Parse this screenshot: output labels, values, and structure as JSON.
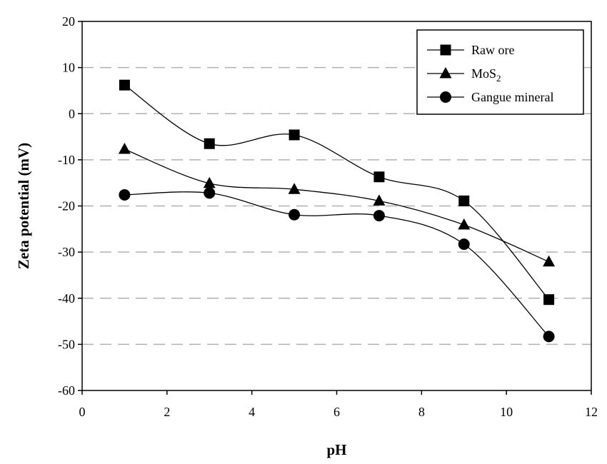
{
  "chart_data": {
    "type": "line",
    "title": "",
    "xlabel": "pH",
    "ylabel": "Zeta potential (mV)",
    "xlim": [
      0,
      12
    ],
    "ylim": [
      -60,
      20
    ],
    "xticks": [
      0,
      2,
      4,
      6,
      8,
      10,
      12
    ],
    "yticks": [
      -60,
      -50,
      -40,
      -30,
      -20,
      -10,
      0,
      10,
      20
    ],
    "grid": "horizontal dashed",
    "legend_position": "top-right",
    "x": [
      1,
      3,
      5,
      7,
      9,
      11
    ],
    "series": [
      {
        "name": "Raw ore",
        "name_main": "Raw ore",
        "name_sub": "",
        "marker": "square",
        "values": [
          6.2,
          -6.5,
          -4.6,
          -13.7,
          -18.9,
          -40.3
        ]
      },
      {
        "name": "MoS2",
        "name_main": "MoS",
        "name_sub": "2",
        "marker": "triangle",
        "values": [
          -7.7,
          -15.1,
          -16.4,
          -18.9,
          -24.1,
          -32.1
        ]
      },
      {
        "name": "Gangue mineral",
        "name_main": "Gangue mineral",
        "name_sub": "",
        "marker": "circle",
        "values": [
          -17.6,
          -17.2,
          -21.9,
          -22.1,
          -28.3,
          -48.3
        ]
      }
    ]
  }
}
